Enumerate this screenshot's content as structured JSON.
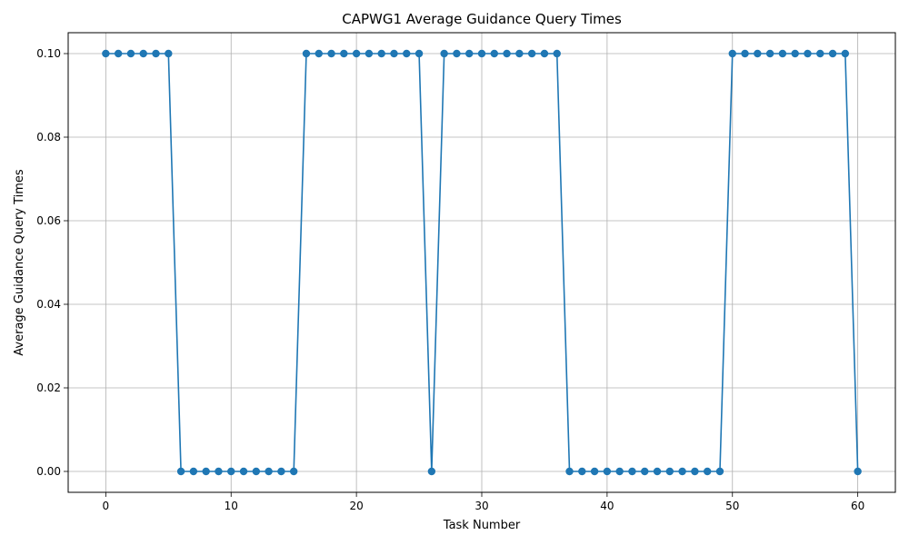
{
  "chart_data": {
    "type": "line",
    "title": "CAPWG1 Average Guidance Query Times",
    "xlabel": "Task Number",
    "ylabel": "Average Guidance Query Times",
    "xlim": [
      -3,
      63
    ],
    "ylim": [
      -0.005,
      0.105
    ],
    "xticks": [
      0,
      10,
      20,
      30,
      40,
      50,
      60
    ],
    "xtick_labels": [
      "0",
      "10",
      "20",
      "30",
      "40",
      "50",
      "60"
    ],
    "yticks": [
      0.0,
      0.02,
      0.04,
      0.06,
      0.08,
      0.1
    ],
    "ytick_labels": [
      "0.00",
      "0.02",
      "0.04",
      "0.06",
      "0.08",
      "0.10"
    ],
    "grid": true,
    "line_color": "#1f77b4",
    "marker": "circle",
    "x": [
      0,
      1,
      2,
      3,
      4,
      5,
      6,
      7,
      8,
      9,
      10,
      11,
      12,
      13,
      14,
      15,
      16,
      17,
      18,
      19,
      20,
      21,
      22,
      23,
      24,
      25,
      26,
      27,
      28,
      29,
      30,
      31,
      32,
      33,
      34,
      35,
      36,
      37,
      38,
      39,
      40,
      41,
      42,
      43,
      44,
      45,
      46,
      47,
      48,
      49,
      50,
      51,
      52,
      53,
      54,
      55,
      56,
      57,
      58,
      59,
      60
    ],
    "y": [
      0.1,
      0.1,
      0.1,
      0.1,
      0.1,
      0.1,
      0,
      0,
      0,
      0,
      0,
      0,
      0,
      0,
      0,
      0,
      0.1,
      0.1,
      0.1,
      0.1,
      0.1,
      0.1,
      0.1,
      0.1,
      0.1,
      0.1,
      0,
      0.1,
      0.1,
      0.1,
      0.1,
      0.1,
      0.1,
      0.1,
      0.1,
      0.1,
      0.1,
      0,
      0,
      0,
      0,
      0,
      0,
      0,
      0,
      0,
      0,
      0,
      0,
      0,
      0.1,
      0.1,
      0.1,
      0.1,
      0.1,
      0.1,
      0.1,
      0.1,
      0.1,
      0.1,
      0
    ]
  }
}
